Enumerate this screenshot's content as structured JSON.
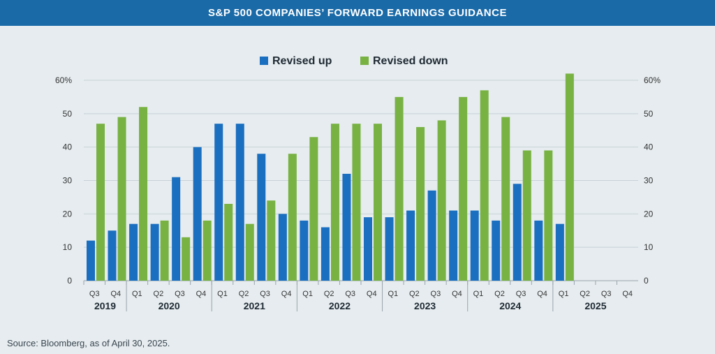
{
  "header": {
    "title": "S&P 500 COMPANIES’ FORWARD EARNINGS GUIDANCE"
  },
  "footer": {
    "source": "Source: Bloomberg, as of April 30, 2025."
  },
  "colors": {
    "up": "#1a6fc0",
    "down": "#78b243",
    "title_bg": "#1a6aa8",
    "background": "#e6ecef"
  },
  "chart_data": {
    "type": "bar",
    "categories": [
      "Q3",
      "Q4",
      "Q1",
      "Q2",
      "Q3",
      "Q4",
      "Q1",
      "Q2",
      "Q3",
      "Q4",
      "Q1",
      "Q2",
      "Q3",
      "Q4",
      "Q1",
      "Q2",
      "Q3",
      "Q4",
      "Q1",
      "Q2",
      "Q3",
      "Q4",
      "Q1",
      "Q2",
      "Q3",
      "Q4"
    ],
    "years": [
      {
        "label": "2019",
        "start": 0,
        "end": 1
      },
      {
        "label": "2020",
        "start": 2,
        "end": 5
      },
      {
        "label": "2021",
        "start": 6,
        "end": 9
      },
      {
        "label": "2022",
        "start": 10,
        "end": 13
      },
      {
        "label": "2023",
        "start": 14,
        "end": 17
      },
      {
        "label": "2024",
        "start": 18,
        "end": 21
      },
      {
        "label": "2025",
        "start": 22,
        "end": 25
      }
    ],
    "series": [
      {
        "name": "Revised up",
        "values": [
          12,
          15,
          17,
          17,
          31,
          40,
          47,
          47,
          38,
          20,
          18,
          16,
          32,
          19,
          19,
          21,
          27,
          21,
          21,
          18,
          29,
          18,
          17,
          null,
          null,
          null
        ]
      },
      {
        "name": "Revised down",
        "values": [
          47,
          49,
          52,
          18,
          13,
          18,
          23,
          17,
          24,
          38,
          43,
          47,
          47,
          47,
          55,
          46,
          48,
          55,
          57,
          49,
          39,
          39,
          62,
          null,
          null,
          null
        ]
      }
    ],
    "yticks": [
      "0",
      "10",
      "20",
      "30",
      "40",
      "50",
      "60%"
    ],
    "ylim": [
      0,
      60
    ]
  }
}
